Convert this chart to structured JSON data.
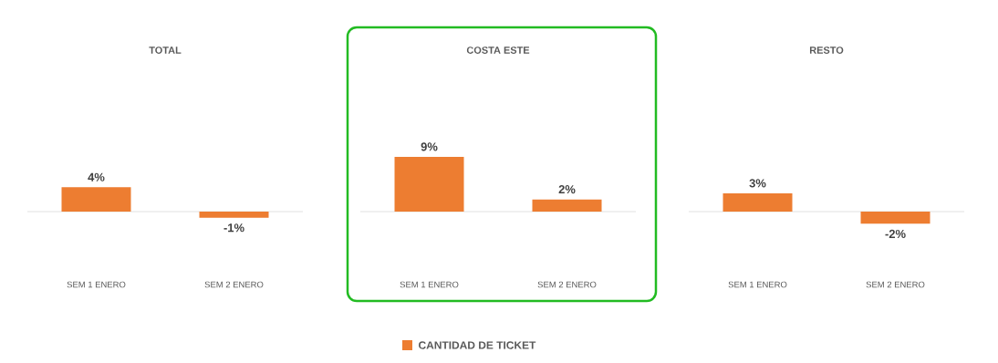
{
  "chart_data": [
    {
      "type": "bar",
      "title": "TOTAL",
      "categories": [
        "SEM 1 ENERO",
        "SEM 2 ENERO"
      ],
      "values": [
        4,
        -1
      ],
      "color": "#ed7d31",
      "value_labels": [
        "4%",
        "-1%"
      ]
    },
    {
      "type": "bar",
      "title": "COSTA ESTE",
      "categories": [
        "SEM 1 ENERO",
        "SEM 2 ENERO"
      ],
      "series": [
        {
          "name": "CANTIDAD DE TICKET",
          "color": "#ed7d31",
          "values": [
            9,
            2
          ],
          "value_labels": [
            "9%",
            "2%"
          ]
        }
      ],
      "legend": "bottom"
    },
    {
      "type": "bar",
      "title": "RESTO",
      "categories": [
        "SEM 1 ENERO",
        "SEM 2 ENERO"
      ],
      "values": [
        3,
        -2
      ],
      "color": "#ed7d31",
      "value_labels": [
        "3%",
        "-2%"
      ]
    }
  ]
}
